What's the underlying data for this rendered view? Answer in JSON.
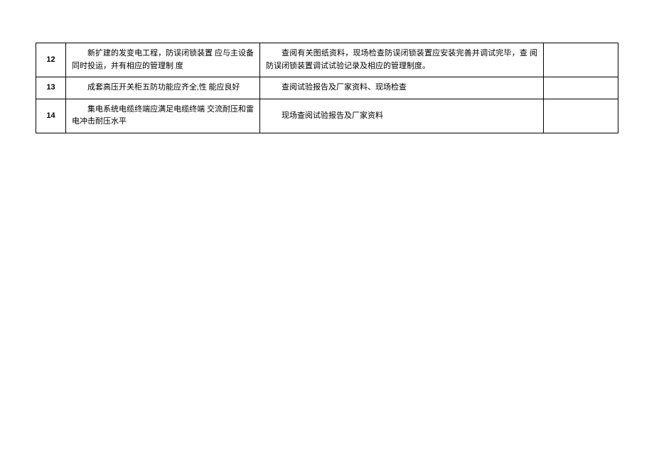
{
  "table": {
    "rows": [
      {
        "num": "12",
        "desc": "新扩建的发变电工程，防误闭锁装置 应与主设备同时投运，并有相应的管理制 度",
        "method": "查阅有关图纸资料，现场检查防误闭锁装置应安装完善并调试完毕，查 阅防误闭锁装置调试试验记录及相应的管理制度。",
        "remark": ""
      },
      {
        "num": "13",
        "desc": "成套高压开关柜五防功能应齐全,性 能应良好",
        "method": "查阅试验报告及厂家资料、现场检查",
        "remark": ""
      },
      {
        "num": "14",
        "desc": "集电系统电缆终端应满足电缆终端 交流耐压和雷电冲击耐压水平",
        "method": "现场查阅试验报告及厂家资料",
        "remark": ""
      }
    ]
  }
}
